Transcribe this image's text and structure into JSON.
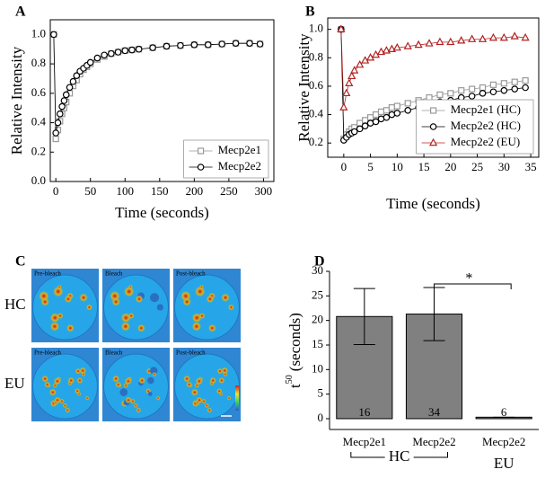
{
  "chart_data": [
    {
      "type": "line",
      "panel": "A",
      "xlabel": "Time (seconds)",
      "ylabel": "Relative Intensity",
      "x": [
        -3,
        0,
        3,
        6,
        9,
        12,
        15,
        20,
        25,
        30,
        35,
        40,
        45,
        50,
        60,
        70,
        80,
        90,
        100,
        110,
        120,
        140,
        160,
        180,
        200,
        220,
        240,
        260,
        280,
        295
      ],
      "series": [
        {
          "name": "Mecp2e1",
          "color": "#999999",
          "marker": "square",
          "values": [
            1.0,
            0.29,
            0.35,
            0.41,
            0.46,
            0.5,
            0.54,
            0.6,
            0.65,
            0.69,
            0.73,
            0.76,
            0.78,
            0.8,
            0.83,
            0.85,
            0.87,
            0.88,
            0.89,
            0.895,
            0.9,
            0.91,
            0.92,
            0.925,
            0.93,
            0.93,
            0.935,
            0.94,
            0.94,
            0.935
          ]
        },
        {
          "name": "Mecp2e2",
          "color": "#000000",
          "marker": "circle",
          "values": [
            1.0,
            0.33,
            0.4,
            0.46,
            0.51,
            0.55,
            0.59,
            0.64,
            0.68,
            0.72,
            0.75,
            0.77,
            0.79,
            0.81,
            0.84,
            0.86,
            0.87,
            0.88,
            0.89,
            0.895,
            0.9,
            0.91,
            0.92,
            0.925,
            0.93,
            0.93,
            0.935,
            0.94,
            0.94,
            0.935
          ]
        }
      ],
      "xlim": [
        -8,
        315
      ],
      "xticks": [
        0,
        50,
        100,
        150,
        200,
        250,
        300
      ],
      "ylim": [
        0,
        1.1
      ],
      "yticks": [
        {
          "value": 0,
          "label": "0.0"
        },
        0.2,
        0.4,
        0.6,
        0.8,
        {
          "value": 1,
          "label": "1.0"
        }
      ],
      "legend": "lower right"
    },
    {
      "type": "line",
      "panel": "B",
      "xlabel": "Time (seconds)",
      "ylabel": "Relative Intensity",
      "x": [
        -0.5,
        0,
        0.5,
        1,
        1.5,
        2,
        3,
        4,
        5,
        6,
        7,
        8,
        9,
        10,
        12,
        14,
        16,
        18,
        20,
        22,
        24,
        26,
        28,
        30,
        32,
        34
      ],
      "series": [
        {
          "name": "Mecp2e1 (HC)",
          "color": "#999999",
          "marker": "square",
          "values": [
            1.0,
            0.23,
            0.26,
            0.28,
            0.3,
            0.31,
            0.34,
            0.36,
            0.38,
            0.4,
            0.42,
            0.43,
            0.45,
            0.46,
            0.48,
            0.5,
            0.52,
            0.54,
            0.55,
            0.57,
            0.58,
            0.59,
            0.61,
            0.62,
            0.63,
            0.64
          ]
        },
        {
          "name": "Mecp2e2 (HC)",
          "color": "#000000",
          "marker": "circle",
          "values": [
            1.0,
            0.22,
            0.24,
            0.26,
            0.27,
            0.28,
            0.3,
            0.32,
            0.34,
            0.35,
            0.37,
            0.38,
            0.4,
            0.41,
            0.43,
            0.45,
            0.47,
            0.49,
            0.5,
            0.52,
            0.53,
            0.55,
            0.56,
            0.57,
            0.58,
            0.59
          ]
        },
        {
          "name": "Mecp2e2 (EU)",
          "color": "#b22222",
          "marker": "triangle",
          "values": [
            1.0,
            0.45,
            0.55,
            0.62,
            0.67,
            0.71,
            0.75,
            0.78,
            0.8,
            0.82,
            0.84,
            0.85,
            0.86,
            0.87,
            0.88,
            0.89,
            0.9,
            0.91,
            0.91,
            0.92,
            0.93,
            0.93,
            0.94,
            0.94,
            0.95,
            0.94
          ]
        }
      ],
      "xlim": [
        -3,
        36.5
      ],
      "xticks": [
        0,
        5,
        10,
        15,
        20,
        25,
        30,
        35
      ],
      "ylim": [
        0.1,
        1.08
      ],
      "yticks": [
        0.2,
        0.4,
        0.6,
        0.8,
        {
          "value": 1,
          "label": "1.0"
        }
      ],
      "legend": "lower right"
    },
    {
      "type": "bar",
      "panel": "D",
      "ylabel_base": "t",
      "ylabel_sup": "50",
      "ylabel_unit": "(seconds)",
      "categories": [
        "Mecp2e1",
        "Mecp2e2",
        "Mecp2e2"
      ],
      "values": [
        20.8,
        21.3,
        0.3
      ],
      "errors": [
        5.7,
        5.4,
        0
      ],
      "n": [
        16,
        34,
        6
      ],
      "groups": [
        "HC",
        "EU"
      ],
      "significance": "*",
      "color": "#808080",
      "ylim": [
        -2.2,
        30
      ],
      "yticks": [
        0,
        5,
        10,
        15,
        20,
        25,
        30
      ]
    }
  ],
  "images": {
    "panel": "C",
    "rows": [
      "HC",
      "EU"
    ],
    "columns": [
      "Pre-bleach",
      "Bleach",
      "Post-bleach"
    ]
  }
}
